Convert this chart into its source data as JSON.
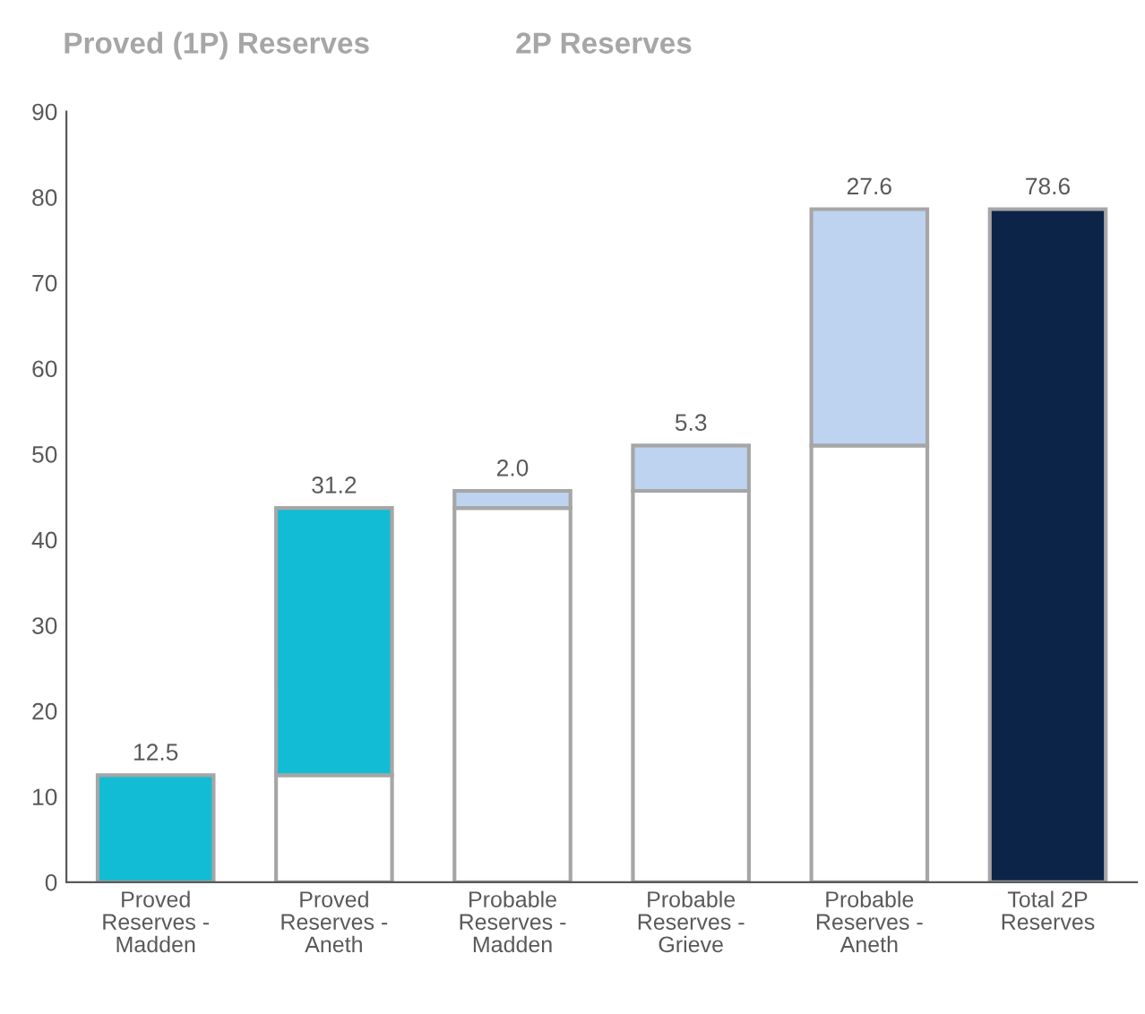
{
  "chart_data": {
    "type": "bar",
    "stacked": true,
    "annotations": [
      "Proved (1P) Reserves",
      "2P Reserves"
    ],
    "categories": [
      "Proved Reserves - Madden",
      "Proved Reserves - Aneth",
      "Probable Reserves - Madden",
      "Probable Reserves - Grieve",
      "Probable Reserves - Aneth",
      "Total 2P Reserves"
    ],
    "series": [
      {
        "color": "#ffffff",
        "values": [
          0,
          12.5,
          43.7,
          45.7,
          51.0,
          0
        ]
      },
      {
        "colors": [
          "#12bcd4",
          "#12bcd4",
          "#bdd3f0",
          "#bdd3f0",
          "#bdd3f0",
          "#0d2449"
        ],
        "values": [
          12.5,
          31.2,
          2.0,
          5.3,
          27.6,
          78.6
        ],
        "value_labels": [
          "12.5",
          "31.2",
          "2.0",
          "5.3",
          "27.6",
          "78.6"
        ]
      }
    ],
    "ylim": [
      0,
      90
    ],
    "yticks": [
      0,
      10,
      20,
      30,
      40,
      50,
      60,
      70,
      80,
      90
    ],
    "grid": false,
    "legend": false
  }
}
